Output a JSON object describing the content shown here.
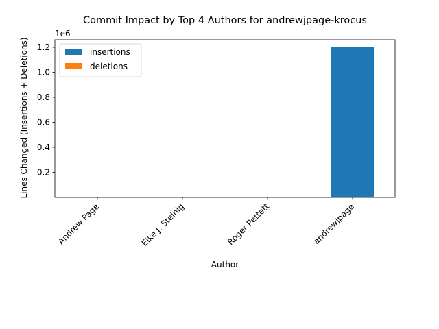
{
  "chart_data": {
    "type": "bar",
    "stacked": true,
    "title": "Commit Impact by Top 4 Authors for andrewjpage-krocus",
    "xlabel": "Author",
    "ylabel": "Lines Changed (Insertions + Deletions)",
    "y_offset_label": "1e6",
    "categories": [
      "Andrew Page",
      "Eike J. Steinig",
      "Roger Pettett",
      "andrewjpage"
    ],
    "series": [
      {
        "name": "insertions",
        "color": "#1f77b4",
        "values": [
          0,
          0,
          0,
          1200000
        ]
      },
      {
        "name": "deletions",
        "color": "#ff7f0e",
        "values": [
          0,
          0,
          0,
          0
        ]
      }
    ],
    "ylim": [
      0,
      1260000
    ],
    "yticks": [
      200000,
      400000,
      600000,
      800000,
      1000000,
      1200000
    ],
    "ytick_labels": [
      "0.2",
      "0.4",
      "0.6",
      "0.8",
      "1.0",
      "1.2"
    ],
    "legend_position": "top-left",
    "grid": false
  }
}
